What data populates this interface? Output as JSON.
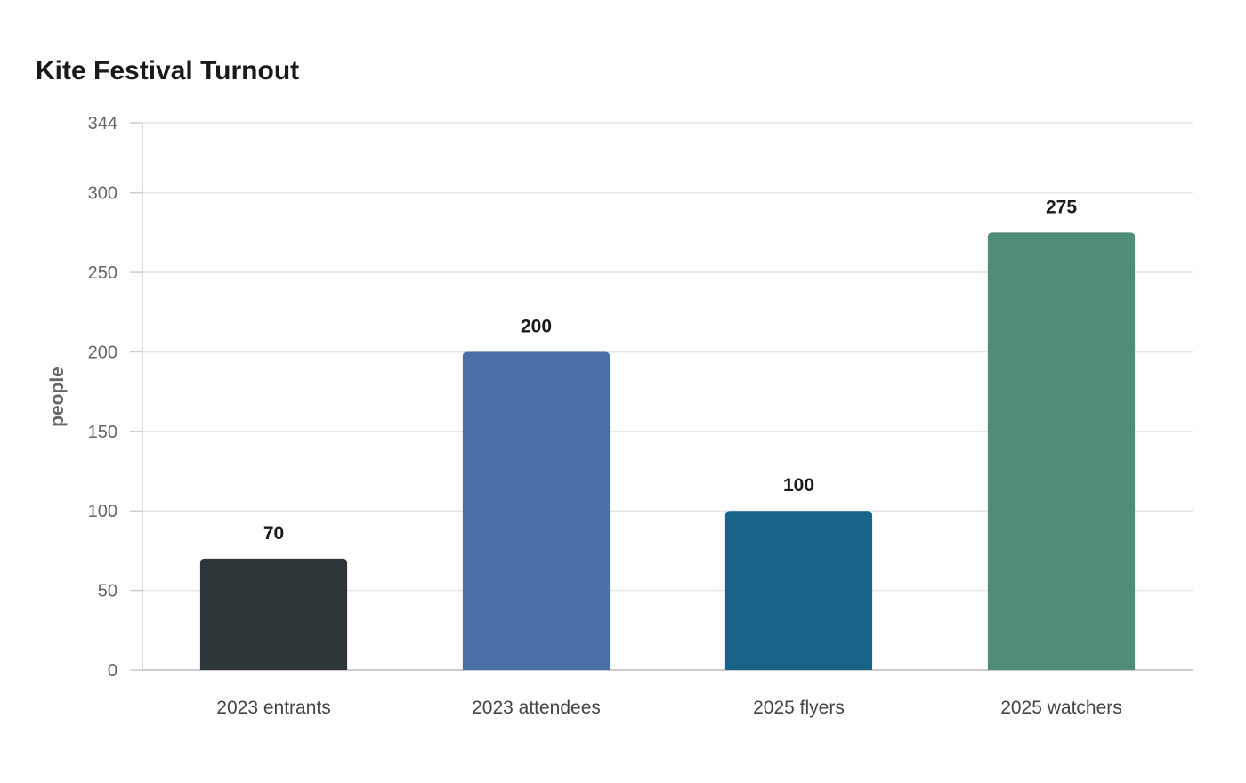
{
  "chart_data": {
    "type": "bar",
    "title": "Kite Festival Turnout",
    "xlabel": "",
    "ylabel": "people",
    "categories": [
      "2023 entrants",
      "2023 attendees",
      "2025 flyers",
      "2025 watchers"
    ],
    "values": [
      70,
      200,
      100,
      275
    ],
    "colors": [
      "#2e3538",
      "#4a6fa5",
      "#196389",
      "#4f8c7a"
    ],
    "ylim": [
      0,
      344
    ],
    "yticks": [
      0,
      50,
      100,
      150,
      200,
      250,
      300,
      344
    ],
    "grid": true,
    "legend": "none",
    "data_labels": true
  }
}
